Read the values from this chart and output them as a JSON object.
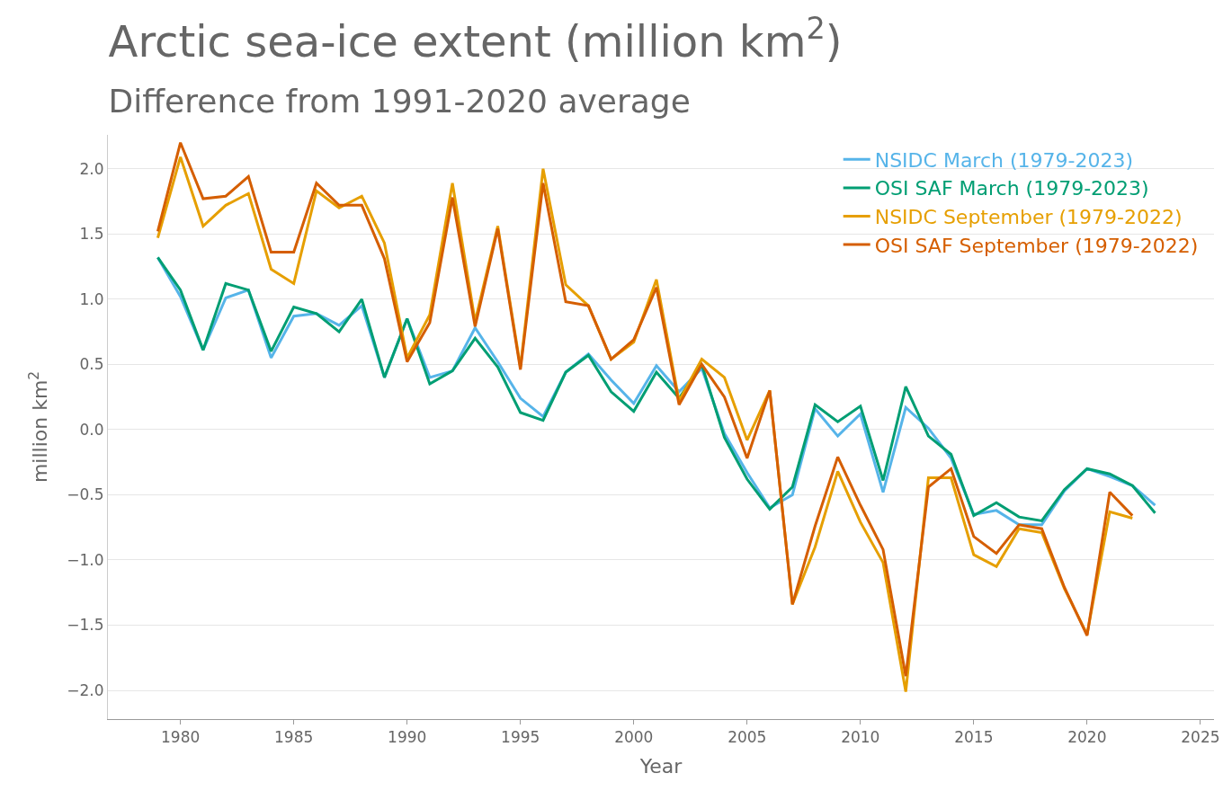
{
  "chart_data": {
    "type": "line",
    "title": "Arctic sea-ice extent (million km$^{2}$)",
    "subtitle": "Difference from 1991-2020 average",
    "xlabel": "Year",
    "ylabel": "million km$^{2}$",
    "x": [
      1979,
      1980,
      1981,
      1982,
      1983,
      1984,
      1985,
      1986,
      1987,
      1988,
      1989,
      1990,
      1991,
      1992,
      1993,
      1994,
      1995,
      1996,
      1997,
      1998,
      1999,
      2000,
      2001,
      2002,
      2003,
      2004,
      2005,
      2006,
      2007,
      2008,
      2009,
      2010,
      2011,
      2012,
      2013,
      2014,
      2015,
      2016,
      2017,
      2018,
      2019,
      2020,
      2021,
      2022,
      2023
    ],
    "series": [
      {
        "name": "NSIDC March (1979-2023)",
        "color": "#56b4e9",
        "values": [
          1.32,
          1.02,
          0.61,
          1.01,
          1.07,
          0.55,
          0.87,
          0.89,
          0.8,
          0.95,
          0.4,
          0.85,
          0.4,
          0.45,
          0.78,
          0.52,
          0.24,
          0.1,
          0.44,
          0.58,
          0.38,
          0.2,
          0.49,
          0.29,
          0.47,
          -0.03,
          -0.33,
          -0.6,
          -0.5,
          0.16,
          -0.05,
          0.12,
          -0.48,
          0.17,
          0.01,
          -0.22,
          -0.65,
          -0.62,
          -0.73,
          -0.73,
          -0.47,
          -0.3,
          -0.36,
          -0.43,
          -0.58
        ]
      },
      {
        "name": "OSI SAF March (1979-2023)",
        "color": "#009e73",
        "values": [
          1.32,
          1.07,
          0.61,
          1.12,
          1.07,
          0.6,
          0.94,
          0.89,
          0.75,
          1.0,
          0.4,
          0.85,
          0.35,
          0.45,
          0.7,
          0.48,
          0.13,
          0.07,
          0.44,
          0.57,
          0.29,
          0.14,
          0.44,
          0.24,
          0.5,
          -0.06,
          -0.38,
          -0.61,
          -0.44,
          0.19,
          0.06,
          0.18,
          -0.39,
          0.33,
          -0.05,
          -0.19,
          -0.66,
          -0.56,
          -0.67,
          -0.7,
          -0.46,
          -0.3,
          -0.34,
          -0.43,
          -0.64
        ]
      },
      {
        "name": "NSIDC September (1979-2022)",
        "color": "#e69f00",
        "values": [
          1.47,
          2.09,
          1.56,
          1.72,
          1.81,
          1.23,
          1.12,
          1.83,
          1.7,
          1.79,
          1.43,
          0.55,
          0.88,
          1.89,
          0.83,
          1.56,
          0.48,
          2.0,
          1.11,
          0.95,
          0.54,
          0.67,
          1.15,
          0.22,
          0.54,
          0.4,
          -0.08,
          0.3,
          -1.34,
          -0.9,
          -0.32,
          -0.71,
          -1.02,
          -2.01,
          -0.37,
          -0.37,
          -0.96,
          -1.05,
          -0.76,
          -0.79,
          -1.22,
          -1.57,
          -0.63,
          -0.68,
          null
        ]
      },
      {
        "name": "OSI SAF September (1979-2022)",
        "color": "#d55e00",
        "values": [
          1.52,
          2.2,
          1.77,
          1.79,
          1.94,
          1.36,
          1.36,
          1.89,
          1.72,
          1.72,
          1.31,
          0.52,
          0.82,
          1.78,
          0.79,
          1.54,
          0.46,
          1.89,
          0.98,
          0.95,
          0.54,
          0.69,
          1.09,
          0.19,
          0.5,
          0.25,
          -0.22,
          0.3,
          -1.34,
          -0.74,
          -0.21,
          -0.58,
          -0.92,
          -1.89,
          -0.44,
          -0.3,
          -0.82,
          -0.95,
          -0.73,
          -0.76,
          -1.21,
          -1.58,
          -0.48,
          -0.66,
          null
        ]
      }
    ],
    "xlim": [
      1976.8,
      2025.6
    ],
    "xticks": [
      1980,
      1985,
      1990,
      1995,
      2000,
      2005,
      2010,
      2015,
      2020,
      2025
    ],
    "ylim": [
      -2.22,
      2.26
    ],
    "yticks": [
      {
        "value": -2.0,
        "label": "−2.0"
      },
      {
        "value": -1.5,
        "label": "−1.5"
      },
      {
        "value": -1.0,
        "label": "−1.0"
      },
      {
        "value": -0.5,
        "label": "−0.5"
      },
      {
        "value": 0,
        "label": "0.0"
      },
      {
        "value": 0.5,
        "label": "0.5"
      },
      {
        "value": 1.0,
        "label": "1.0"
      },
      {
        "value": 1.5,
        "label": "1.5"
      },
      {
        "value": 2.0,
        "label": "2.0"
      }
    ],
    "grid": "y",
    "legend": "top right",
    "marker": "none",
    "line_style": "solid"
  }
}
